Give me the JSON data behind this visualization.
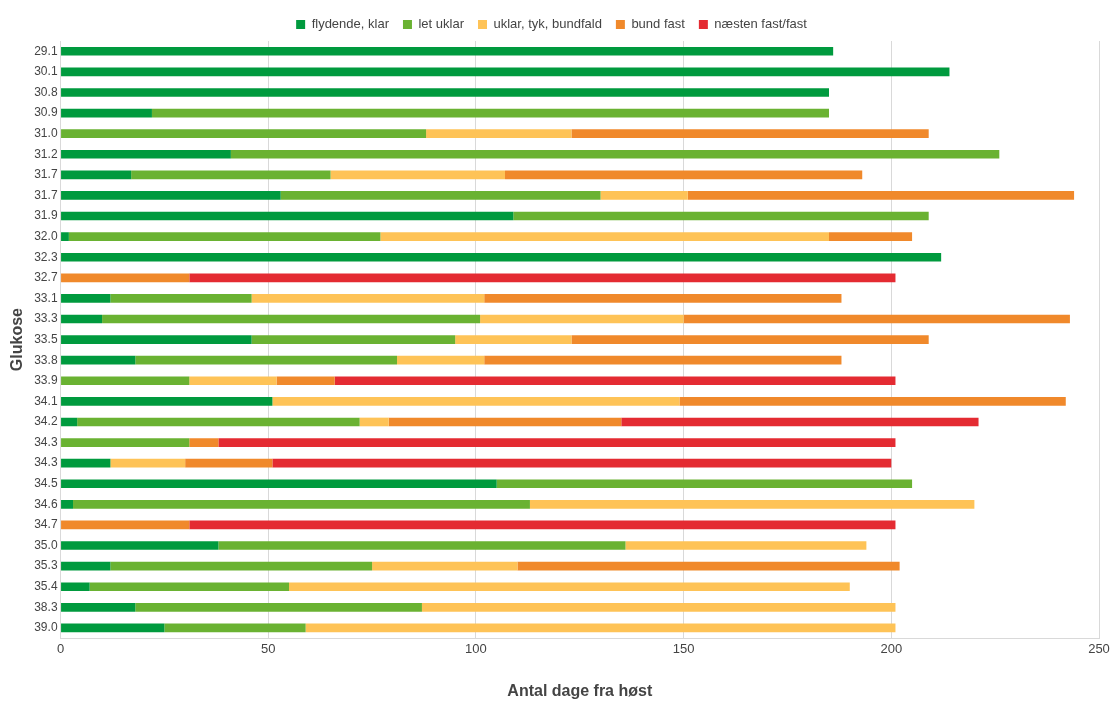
{
  "chart_data": {
    "type": "bar",
    "orientation": "horizontal",
    "stacked": true,
    "xlabel": "Antal dage fra høst",
    "ylabel": "Glukose",
    "legend": "top",
    "grid": "x",
    "xlim": [
      0,
      250
    ],
    "xticks": [
      0,
      50,
      100,
      150,
      200,
      250
    ],
    "categories": [
      "29.1",
      "30.1",
      "30.8",
      "30.9",
      "31.0",
      "31.2",
      "31.7",
      "31.7",
      "31.9",
      "32.0",
      "32.3",
      "32.7",
      "33.1",
      "33.3",
      "33.5",
      "33.8",
      "33.9",
      "34.1",
      "34.2",
      "34.3",
      "34.3",
      "34.5",
      "34.6",
      "34.7",
      "35.0",
      "35.3",
      "35.4",
      "38.3",
      "39.0"
    ],
    "series": [
      {
        "name": "flydende, klar",
        "color": "#009a3e",
        "values": [
          186,
          214,
          185,
          22,
          null,
          41,
          17,
          53,
          109,
          2,
          212,
          null,
          12,
          10,
          46,
          18,
          null,
          51,
          4,
          null,
          12,
          105,
          3,
          null,
          38,
          12,
          7,
          18,
          25
        ]
      },
      {
        "name": "let uklar",
        "color": "#6ab232",
        "values": [
          null,
          null,
          null,
          163,
          88,
          185,
          48,
          77,
          100,
          75,
          null,
          null,
          34,
          91,
          49,
          63,
          31,
          null,
          68,
          31,
          null,
          100,
          110,
          null,
          98,
          63,
          48,
          69,
          34
        ]
      },
      {
        "name": "uklar, tyk, bundfald",
        "color": "#fec357",
        "values": [
          null,
          null,
          null,
          null,
          35,
          null,
          42,
          21,
          null,
          108,
          null,
          null,
          56,
          49,
          28,
          21,
          21,
          98,
          7,
          null,
          18,
          null,
          107,
          null,
          58,
          35,
          135,
          114,
          142
        ]
      },
      {
        "name": "bund fast",
        "color": "#f0892b",
        "values": [
          null,
          null,
          null,
          null,
          86,
          null,
          86,
          93,
          null,
          20,
          null,
          31,
          86,
          93,
          86,
          86,
          14,
          93,
          56,
          7,
          21,
          null,
          null,
          31,
          null,
          92,
          null,
          null,
          null
        ]
      },
      {
        "name": "næsten fast/fast",
        "color": "#e42b32",
        "values": [
          null,
          null,
          null,
          null,
          null,
          null,
          null,
          null,
          null,
          null,
          null,
          170,
          null,
          null,
          null,
          null,
          135,
          null,
          86,
          163,
          149,
          null,
          null,
          170,
          null,
          null,
          null,
          null,
          null
        ]
      }
    ]
  }
}
